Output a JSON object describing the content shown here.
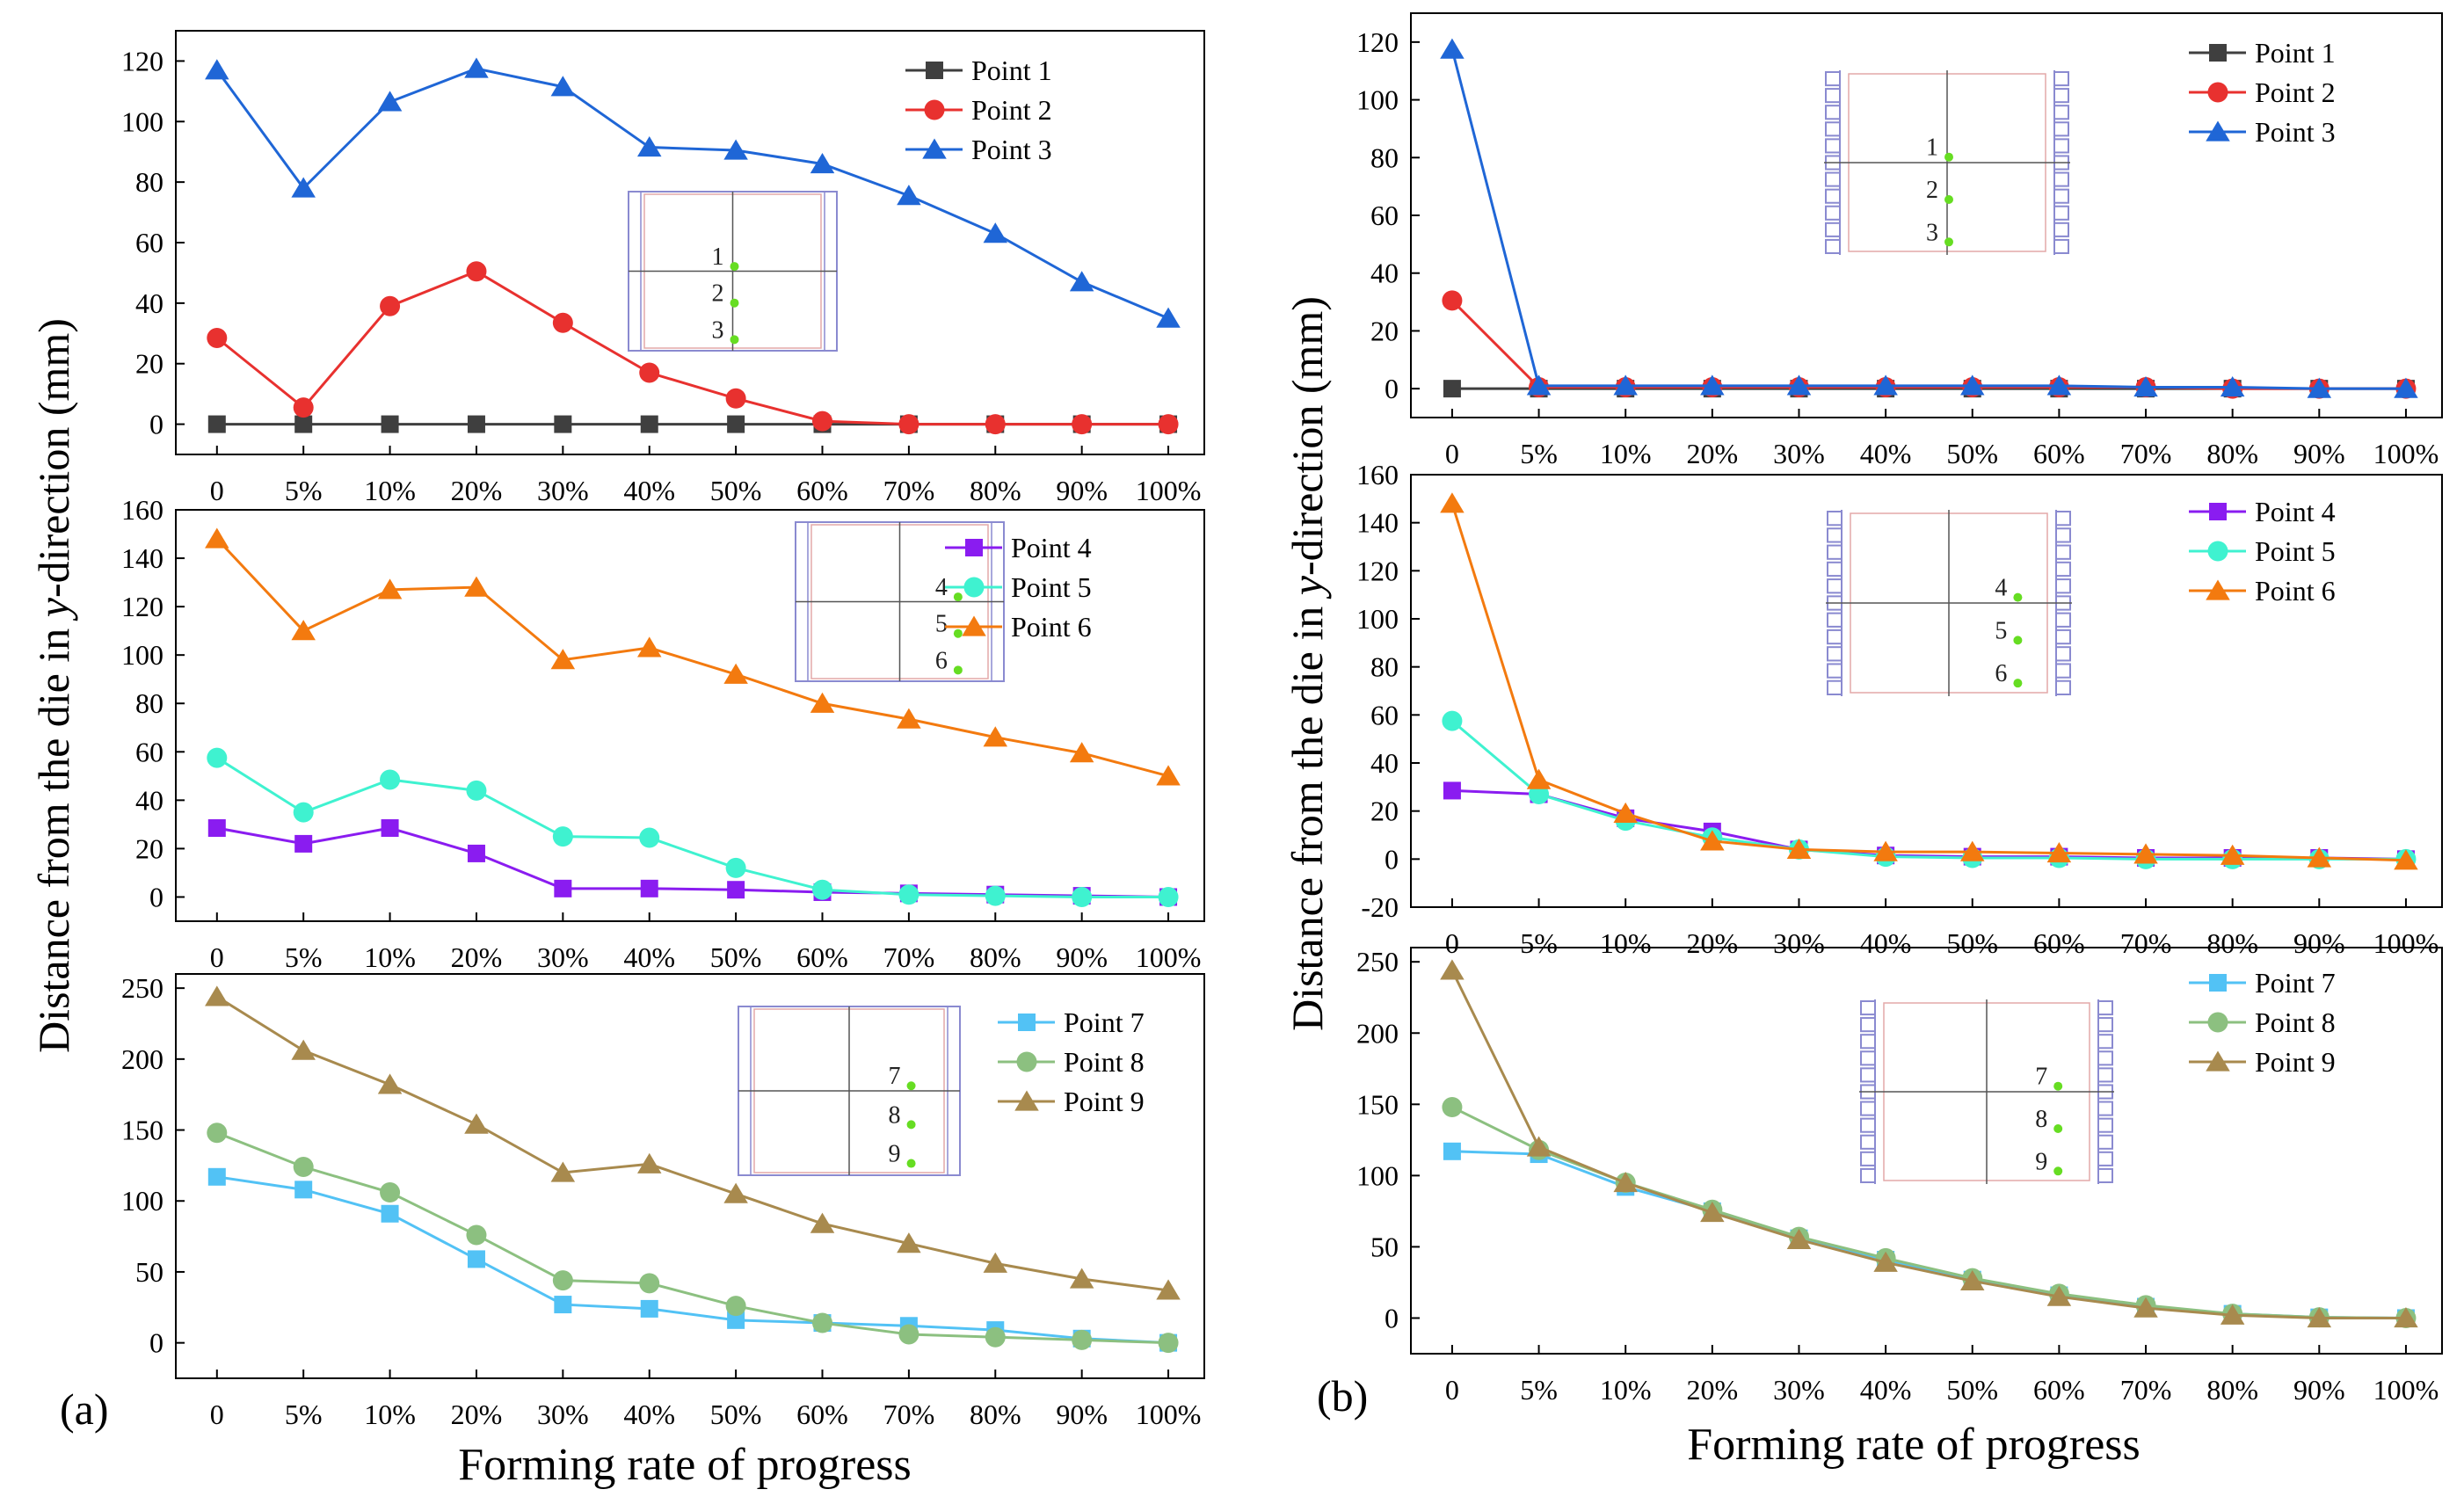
{
  "figure": {
    "panel_labels": [
      "(a)",
      "(b)"
    ],
    "xlabel": "Forming rate of progress",
    "ylabel_main": "Distance from the die in ",
    "ylabel_italic": "y",
    "ylabel_tail": "-direction (mm)"
  },
  "colors": {
    "Point 1": "#3f3f3f",
    "Point 2": "#e8312f",
    "Point 3": "#1f66d6",
    "Point 4": "#8a1cf0",
    "Point 5": "#3ff2d0",
    "Point 6": "#f37a0f",
    "Point 7": "#52c2f5",
    "Point 8": "#8cc080",
    "Point 9": "#a88a4e",
    "inset_frame": "#8a8ad0",
    "inset_inner": "#e3a8a8",
    "inset_dot": "#66dd22"
  },
  "chart_data": [
    {
      "id": "a-top",
      "type": "line",
      "categories": [
        "0",
        "5%",
        "10%",
        "20%",
        "30%",
        "40%",
        "50%",
        "60%",
        "70%",
        "80%",
        "90%",
        "100%"
      ],
      "ylim": [
        -10,
        130
      ],
      "yticks": [
        0,
        20,
        40,
        60,
        80,
        100,
        120
      ],
      "inset_labels": [
        "1",
        "2",
        "3"
      ],
      "series": [
        {
          "name": "Point 1",
          "marker": "square",
          "values": [
            0,
            0,
            0,
            0,
            0,
            0,
            0,
            0,
            0,
            0,
            0,
            0
          ]
        },
        {
          "name": "Point 2",
          "marker": "circle",
          "values": [
            28.5,
            5.5,
            39,
            50.5,
            33.5,
            17,
            8.5,
            1,
            0,
            0,
            0,
            0
          ]
        },
        {
          "name": "Point 3",
          "marker": "triangle",
          "values": [
            117,
            78,
            106.5,
            117.5,
            111.5,
            91.5,
            90.5,
            86,
            75.5,
            63,
            47,
            35
          ]
        }
      ]
    },
    {
      "id": "a-mid",
      "type": "line",
      "categories": [
        "0",
        "5%",
        "10%",
        "20%",
        "30%",
        "40%",
        "50%",
        "60%",
        "70%",
        "80%",
        "90%",
        "100%"
      ],
      "ylim": [
        -10,
        160
      ],
      "yticks": [
        0,
        20,
        40,
        60,
        80,
        100,
        120,
        140,
        160
      ],
      "inset_labels": [
        "4",
        "5",
        "6"
      ],
      "series": [
        {
          "name": "Point 4",
          "marker": "square",
          "values": [
            28.5,
            22,
            28.5,
            18,
            3.5,
            3.5,
            3,
            2,
            1.5,
            1,
            0.5,
            0
          ]
        },
        {
          "name": "Point 5",
          "marker": "circle",
          "values": [
            57.5,
            35,
            48.5,
            44,
            25,
            24.5,
            12,
            3,
            1,
            0.5,
            0,
            0
          ]
        },
        {
          "name": "Point 6",
          "marker": "triangle",
          "values": [
            148,
            110,
            127,
            128,
            98,
            103,
            92,
            80,
            73.5,
            66,
            59.5,
            50
          ]
        }
      ]
    },
    {
      "id": "a-bot",
      "type": "line",
      "categories": [
        "0",
        "5%",
        "10%",
        "20%",
        "30%",
        "40%",
        "50%",
        "60%",
        "70%",
        "80%",
        "90%",
        "100%"
      ],
      "ylim": [
        -25,
        260
      ],
      "yticks": [
        0,
        50,
        100,
        150,
        200,
        250
      ],
      "inset_labels": [
        "7",
        "8",
        "9"
      ],
      "series": [
        {
          "name": "Point 7",
          "marker": "square",
          "values": [
            117,
            108,
            91,
            59,
            27,
            24,
            16,
            14,
            12,
            9,
            3,
            0
          ]
        },
        {
          "name": "Point 8",
          "marker": "circle",
          "values": [
            148,
            124,
            106,
            76,
            44,
            42,
            26,
            14,
            6,
            4,
            2,
            0
          ]
        },
        {
          "name": "Point 9",
          "marker": "triangle",
          "values": [
            244,
            206,
            182,
            154,
            120,
            126,
            105,
            84,
            70,
            56,
            45,
            37
          ]
        }
      ]
    },
    {
      "id": "b-top",
      "type": "line",
      "categories": [
        "0",
        "5%",
        "10%",
        "20%",
        "30%",
        "40%",
        "50%",
        "60%",
        "70%",
        "80%",
        "90%",
        "100%"
      ],
      "ylim": [
        -10,
        130
      ],
      "yticks": [
        0,
        20,
        40,
        60,
        80,
        100,
        120
      ],
      "inset_labels": [
        "1",
        "2",
        "3"
      ],
      "series": [
        {
          "name": "Point 1",
          "marker": "square",
          "values": [
            0,
            0,
            0,
            0,
            0,
            0,
            0,
            0,
            0,
            0,
            0,
            0
          ]
        },
        {
          "name": "Point 2",
          "marker": "circle",
          "values": [
            30.5,
            0.5,
            0.5,
            0.5,
            0.5,
            0.5,
            0.5,
            0.5,
            0.5,
            0,
            0,
            0
          ]
        },
        {
          "name": "Point 3",
          "marker": "triangle",
          "values": [
            117.5,
            1,
            1,
            1,
            1,
            1,
            1,
            1,
            0.5,
            0.5,
            0,
            0
          ]
        }
      ]
    },
    {
      "id": "b-mid",
      "type": "line",
      "categories": [
        "0",
        "5%",
        "10%",
        "20%",
        "30%",
        "40%",
        "50%",
        "60%",
        "70%",
        "80%",
        "90%",
        "100%"
      ],
      "ylim": [
        -20,
        160
      ],
      "yticks": [
        -20,
        0,
        20,
        40,
        60,
        80,
        100,
        120,
        140,
        160
      ],
      "inset_labels": [
        "4",
        "5",
        "6"
      ],
      "series": [
        {
          "name": "Point 4",
          "marker": "square",
          "values": [
            28.5,
            27,
            17,
            11.5,
            4,
            1.5,
            1,
            1,
            0.5,
            0.5,
            0.5,
            0
          ]
        },
        {
          "name": "Point 5",
          "marker": "circle",
          "values": [
            57.5,
            27,
            16,
            9,
            4,
            1,
            0.5,
            0.5,
            0,
            0,
            0,
            0
          ]
        },
        {
          "name": "Point 6",
          "marker": "triangle",
          "values": [
            148,
            33,
            19,
            7.5,
            4,
            3,
            3,
            2.5,
            2,
            1.5,
            0.5,
            -0.5
          ]
        }
      ]
    },
    {
      "id": "b-bot",
      "type": "line",
      "categories": [
        "0",
        "5%",
        "10%",
        "20%",
        "30%",
        "40%",
        "50%",
        "60%",
        "70%",
        "80%",
        "90%",
        "100%"
      ],
      "ylim": [
        -25,
        260
      ],
      "yticks": [
        0,
        50,
        100,
        150,
        200,
        250
      ],
      "inset_labels": [
        "7",
        "8",
        "9"
      ],
      "series": [
        {
          "name": "Point 7",
          "marker": "square",
          "values": [
            117,
            115,
            92,
            75,
            56,
            41,
            27,
            16,
            8,
            3,
            0.5,
            0
          ]
        },
        {
          "name": "Point 8",
          "marker": "circle",
          "values": [
            148,
            118,
            95,
            76,
            57,
            42,
            28,
            17,
            9,
            3,
            0.5,
            0
          ]
        },
        {
          "name": "Point 9",
          "marker": "triangle",
          "values": [
            244,
            120,
            95,
            74,
            55,
            39,
            26,
            15,
            7,
            2,
            0,
            0
          ]
        }
      ]
    }
  ]
}
